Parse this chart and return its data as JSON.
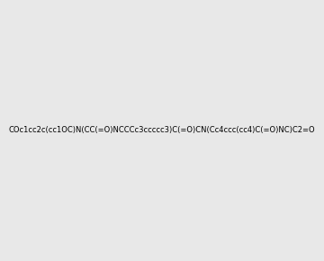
{
  "smiles": "COc1cc2c(cc1OC)N(CC(=O)NCCCc3ccccc3)C(=O)CN(Cc4ccc(cc4)C(=O)NC)C2=O",
  "image_size": 300,
  "background_color": "#e8e8e8",
  "bond_color": "#1a1a1a",
  "atom_colors": {
    "N": "#0000ff",
    "O": "#ff0000",
    "H_N": "#4a9a9a"
  }
}
